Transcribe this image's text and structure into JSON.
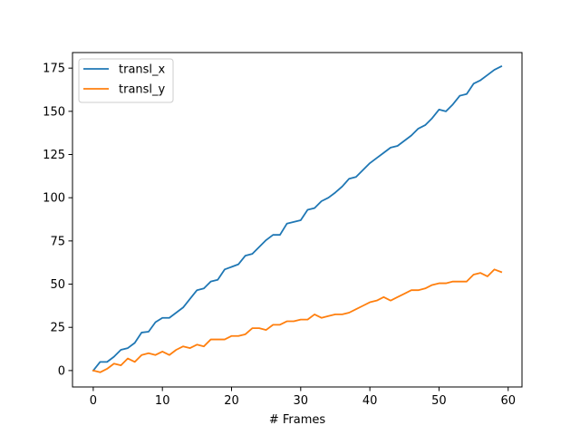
{
  "chart_data": {
    "type": "line",
    "title": "",
    "xlabel": "# Frames",
    "ylabel": "",
    "xlim": [
      -3,
      62
    ],
    "ylim": [
      -9.5,
      184
    ],
    "xticks": [
      0,
      10,
      20,
      30,
      40,
      50,
      60
    ],
    "yticks": [
      0,
      25,
      50,
      75,
      100,
      125,
      150,
      175
    ],
    "grid": false,
    "legend": "top-left",
    "x": [
      0,
      1,
      2,
      3,
      4,
      5,
      6,
      7,
      8,
      9,
      10,
      11,
      12,
      13,
      14,
      15,
      16,
      17,
      18,
      19,
      20,
      21,
      22,
      23,
      24,
      25,
      26,
      27,
      28,
      29,
      30,
      31,
      32,
      33,
      34,
      35,
      36,
      37,
      38,
      39,
      40,
      41,
      42,
      43,
      44,
      45,
      46,
      47,
      48,
      49,
      50,
      51,
      52,
      53,
      54,
      55,
      56,
      57,
      58,
      59
    ],
    "series": [
      {
        "name": "transl_x",
        "color": "#1f77b4",
        "values": [
          0,
          5,
          5,
          8,
          12,
          13,
          16,
          22,
          22.5,
          28,
          30.5,
          30.5,
          33.5,
          36.5,
          41.5,
          46.5,
          47.5,
          51.5,
          52.5,
          58.5,
          60,
          61.5,
          66.5,
          67.5,
          71.5,
          75.5,
          78.5,
          78.5,
          85,
          86,
          87,
          93,
          94,
          98,
          100,
          103,
          106.5,
          111,
          112,
          116,
          120,
          123,
          126,
          129,
          130,
          133,
          136,
          140,
          142,
          146,
          151,
          150,
          154,
          159,
          160,
          166,
          168,
          171,
          174,
          176
        ]
      },
      {
        "name": "transl_y",
        "color": "#ff7f0e",
        "values": [
          0,
          -1,
          1,
          4,
          3,
          7,
          5,
          9,
          10,
          9,
          11,
          9,
          12,
          14,
          13,
          15,
          14,
          18,
          18,
          18,
          20,
          20,
          21,
          24.5,
          24.5,
          23.5,
          26.5,
          26.5,
          28.5,
          28.5,
          29.5,
          29.5,
          32.5,
          30.5,
          31.5,
          32.5,
          32.5,
          33.5,
          35.5,
          37.5,
          39.5,
          40.5,
          42.5,
          40.5,
          42.5,
          44.5,
          46.5,
          46.5,
          47.5,
          49.5,
          50.5,
          50.5,
          51.5,
          51.5,
          51.5,
          55.5,
          56.5,
          54.5,
          58.5,
          57
        ]
      }
    ]
  }
}
